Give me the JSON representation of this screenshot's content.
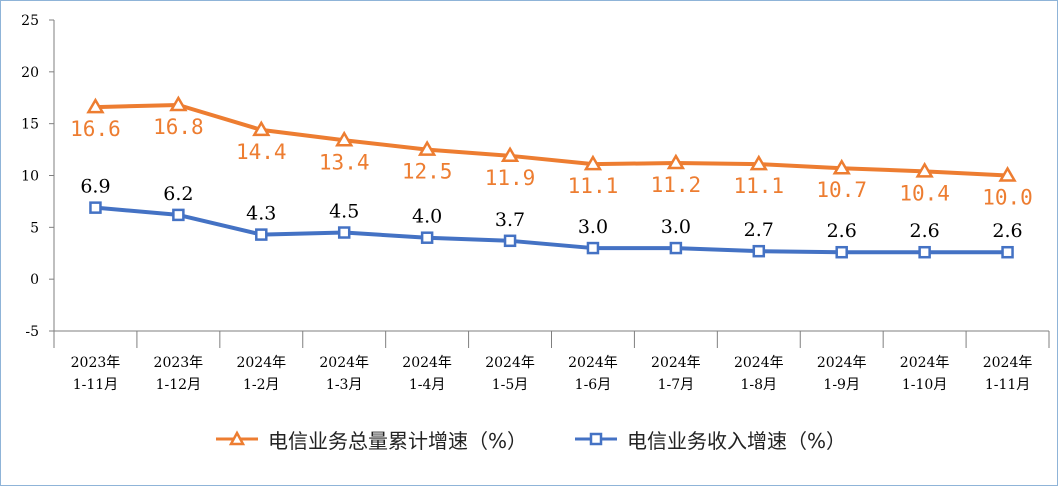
{
  "chart_data": {
    "type": "line",
    "categories": [
      [
        "2023年",
        "1-11月"
      ],
      [
        "2023年",
        "1-12月"
      ],
      [
        "2024年",
        "1-2月"
      ],
      [
        "2024年",
        "1-3月"
      ],
      [
        "2024年",
        "1-4月"
      ],
      [
        "2024年",
        "1-5月"
      ],
      [
        "2024年",
        "1-6月"
      ],
      [
        "2024年",
        "1-7月"
      ],
      [
        "2024年",
        "1-8月"
      ],
      [
        "2024年",
        "1-9月"
      ],
      [
        "2024年",
        "1-10月"
      ],
      [
        "2024年",
        "1-11月"
      ]
    ],
    "series": [
      {
        "name": "电信业务总量累计增速（%）",
        "color": "#ED7D31",
        "marker": "triangle",
        "values": [
          16.6,
          16.8,
          14.4,
          13.4,
          12.5,
          11.9,
          11.1,
          11.2,
          11.1,
          10.7,
          10.4,
          10.0
        ],
        "labels": [
          "16.6",
          "16.8",
          "14.4",
          "13.4",
          "12.5",
          "11.9",
          "11.1",
          "11.2",
          "11.1",
          "10.7",
          "10.4",
          "10.0"
        ]
      },
      {
        "name": "电信业务收入增速（%）",
        "color": "#4472C4",
        "marker": "square",
        "values": [
          6.9,
          6.2,
          4.3,
          4.5,
          4.0,
          3.7,
          3.0,
          3.0,
          2.7,
          2.6,
          2.6,
          2.6
        ],
        "labels": [
          "6.9",
          "6.2",
          "4.3",
          "4.5",
          "4.0",
          "3.7",
          "3.0",
          "3.0",
          "2.7",
          "2.6",
          "2.6",
          "2.6"
        ]
      }
    ],
    "yticks": [
      "-5",
      "0",
      "5",
      "10",
      "15",
      "20",
      "25"
    ],
    "ylim": [
      -5,
      25
    ],
    "grid": false,
    "legend_position": "bottom"
  }
}
